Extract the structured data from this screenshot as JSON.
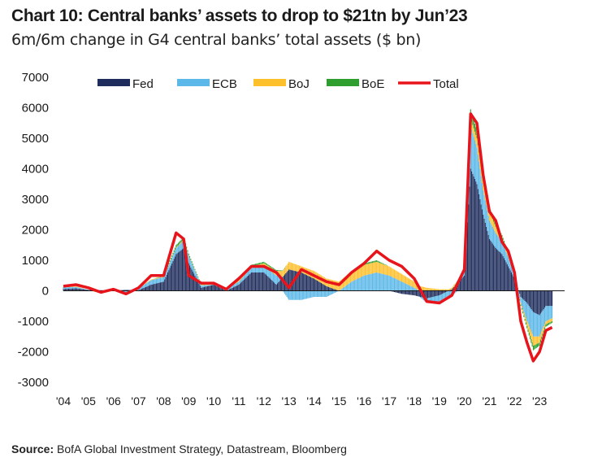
{
  "header": {
    "title": "Chart 10: Central banks’ assets to drop to $21tn by Jun’23",
    "subtitle": "6m/6m change in G4 central banks’ total assets ($ bn)"
  },
  "footer": {
    "source_label": "Source:",
    "source_text": "BofA Global Investment Strategy, Datastream, Bloomberg"
  },
  "colors": {
    "Fed": "#1f2d5c",
    "ECB": "#5cb8e8",
    "BoJ": "#ffc02e",
    "BoE": "#2e9e2e",
    "Total": "#e8141b"
  },
  "chart_data": {
    "type": "bar",
    "stacked": true,
    "grid": false,
    "legend_position": "top",
    "ylim": [
      -3000,
      7000
    ],
    "y_ticks": [
      "7000",
      "6000",
      "5000",
      "4000",
      "3000",
      "2000",
      "1000",
      "0",
      "-1000",
      "-2000",
      "-3000"
    ],
    "x_ticks": [
      "'04",
      "'05",
      "'06",
      "'07",
      "'08",
      "'09",
      "'10",
      "'11",
      "'12",
      "'13",
      "'14",
      "'15",
      "'16",
      "'17",
      "'18",
      "'19",
      "'20",
      "'21",
      "'22",
      "'23"
    ],
    "x": [
      2004.0,
      2004.5,
      2005.0,
      2005.5,
      2006.0,
      2006.5,
      2007.0,
      2007.5,
      2008.0,
      2008.5,
      2008.8,
      2009.0,
      2009.5,
      2010.0,
      2010.5,
      2011.0,
      2011.5,
      2012.0,
      2012.5,
      2013.0,
      2013.5,
      2014.0,
      2014.5,
      2015.0,
      2015.5,
      2016.0,
      2016.5,
      2017.0,
      2017.5,
      2018.0,
      2018.5,
      2019.0,
      2019.5,
      2020.0,
      2020.25,
      2020.5,
      2020.75,
      2021.0,
      2021.25,
      2021.5,
      2021.75,
      2022.0,
      2022.25,
      2022.5,
      2022.75,
      2023.0,
      2023.25,
      2023.5
    ],
    "series": [
      {
        "name": "Fed",
        "type": "bar",
        "values": [
          60,
          80,
          30,
          20,
          10,
          30,
          20,
          200,
          300,
          1200,
          1400,
          900,
          100,
          200,
          0,
          200,
          600,
          600,
          200,
          700,
          600,
          400,
          150,
          0,
          0,
          0,
          0,
          0,
          -100,
          -150,
          -250,
          -150,
          50,
          500,
          4000,
          3500,
          2500,
          1700,
          1400,
          1200,
          800,
          400,
          -200,
          -400,
          -700,
          -800,
          -500,
          -500
        ]
      },
      {
        "name": "ECB",
        "type": "bar",
        "values": [
          50,
          50,
          0,
          -50,
          30,
          -50,
          60,
          150,
          150,
          200,
          250,
          250,
          80,
          0,
          50,
          100,
          150,
          200,
          300,
          -300,
          -300,
          -200,
          -200,
          0,
          300,
          500,
          600,
          500,
          300,
          100,
          -150,
          -200,
          -150,
          150,
          1400,
          1200,
          800,
          600,
          500,
          400,
          300,
          100,
          -200,
          -600,
          -800,
          -700,
          -500,
          -400
        ]
      },
      {
        "name": "BoJ",
        "type": "bar",
        "values": [
          20,
          20,
          0,
          -20,
          10,
          -50,
          20,
          20,
          20,
          20,
          30,
          20,
          20,
          50,
          50,
          50,
          50,
          100,
          150,
          250,
          200,
          250,
          250,
          300,
          350,
          350,
          350,
          300,
          250,
          200,
          100,
          50,
          50,
          50,
          250,
          300,
          300,
          300,
          200,
          150,
          100,
          50,
          -50,
          -150,
          -300,
          -200,
          -100,
          -100
        ]
      },
      {
        "name": "BoE",
        "type": "bar",
        "values": [
          0,
          0,
          0,
          0,
          0,
          0,
          0,
          0,
          20,
          80,
          80,
          50,
          10,
          0,
          0,
          50,
          50,
          50,
          30,
          0,
          0,
          0,
          0,
          0,
          0,
          50,
          50,
          0,
          0,
          0,
          0,
          0,
          0,
          50,
          300,
          250,
          200,
          150,
          100,
          80,
          50,
          30,
          -50,
          -80,
          -150,
          -100,
          -80,
          -50
        ]
      },
      {
        "name": "Total",
        "type": "line",
        "values": [
          150,
          200,
          100,
          -50,
          50,
          -100,
          100,
          500,
          500,
          1900,
          1700,
          500,
          250,
          250,
          50,
          400,
          800,
          800,
          600,
          100,
          700,
          500,
          300,
          200,
          600,
          900,
          1300,
          1000,
          800,
          400,
          -350,
          -400,
          -150,
          700,
          5800,
          5500,
          3800,
          2600,
          2300,
          1600,
          1300,
          600,
          -1000,
          -1700,
          -2300,
          -2000,
          -1300,
          -1200
        ]
      }
    ]
  }
}
